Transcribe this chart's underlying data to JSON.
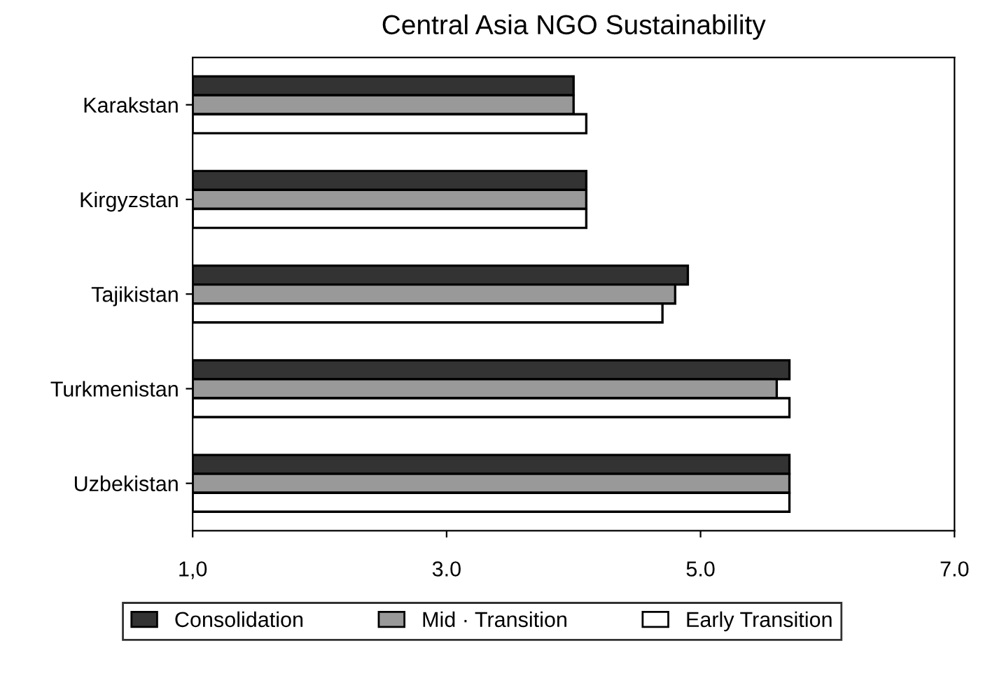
{
  "chart_data": {
    "type": "bar",
    "orientation": "horizontal",
    "title": "Central Asia NGO Sustainability",
    "categories": [
      "Karakstan",
      "Kirgyzstan",
      "Tajikistan",
      "Turkmenistan",
      "Uzbekistan"
    ],
    "series": [
      {
        "name": "Consolidation",
        "color": "#333333",
        "values": [
          4.0,
          4.1,
          4.9,
          5.7,
          5.7
        ]
      },
      {
        "name": "Mid · Transition",
        "color": "#999999",
        "values": [
          4.0,
          4.1,
          4.8,
          5.6,
          5.7
        ]
      },
      {
        "name": "Early Transition",
        "color": "#ffffff",
        "values": [
          4.1,
          4.1,
          4.7,
          5.7,
          5.7
        ]
      }
    ],
    "xlim": [
      1,
      7
    ],
    "xticks": [
      {
        "value": 1,
        "label": "1,0"
      },
      {
        "value": 3,
        "label": "3.0"
      },
      {
        "value": 5,
        "label": "5.0"
      },
      {
        "value": 7,
        "label": "7.0"
      }
    ],
    "grid": false,
    "legend": "bottom"
  }
}
